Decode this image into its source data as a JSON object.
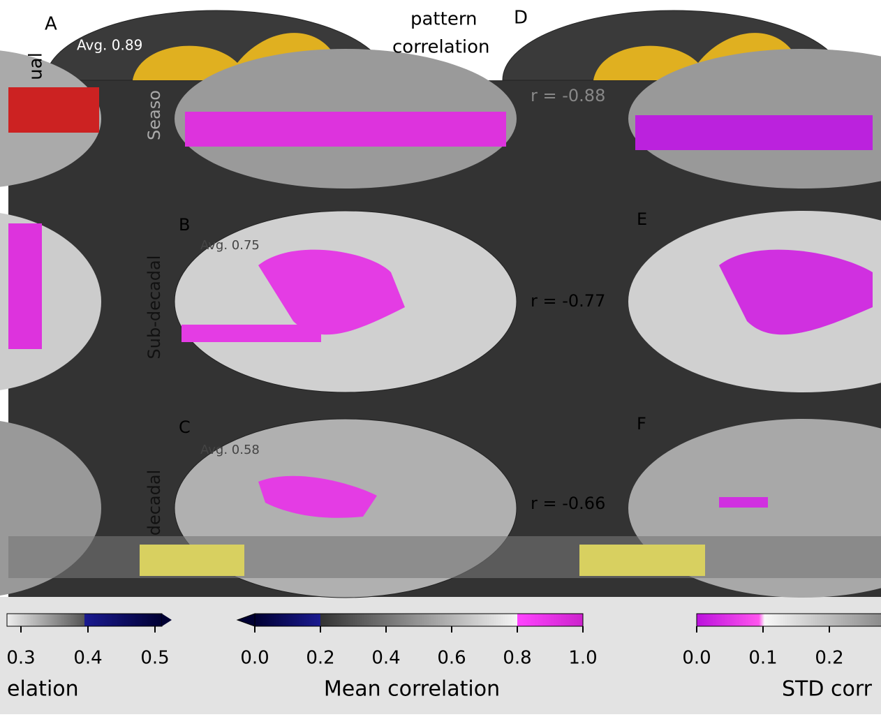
{
  "header": {
    "title_line1": "pattern",
    "title_line2": "correlation",
    "cut_row_label": "ual"
  },
  "panels": [
    {
      "label": "A",
      "avg": "Avg. 0.89"
    },
    {
      "label": "D",
      "r": "r = -0.88"
    },
    {
      "label": "B",
      "avg": "Avg. 0.75"
    },
    {
      "label": "E",
      "r": "r = -0.77"
    },
    {
      "label": "C",
      "avg": "Avg. 0.58"
    },
    {
      "label": "F",
      "r": "r = -0.66"
    }
  ],
  "row_labels": [
    "Seaso",
    "Sub-decadal",
    "decadal"
  ],
  "colorbars": [
    {
      "ticks": [
        "0.3",
        "0.4",
        "0.5"
      ],
      "label": "elation"
    },
    {
      "ticks": [
        "0.0",
        "0.2",
        "0.4",
        "0.6",
        "0.8",
        "1.0"
      ],
      "label": "Mean correlation"
    },
    {
      "ticks": [
        "0.0",
        "0.1",
        "0.2"
      ],
      "label": "STD corr"
    }
  ]
}
